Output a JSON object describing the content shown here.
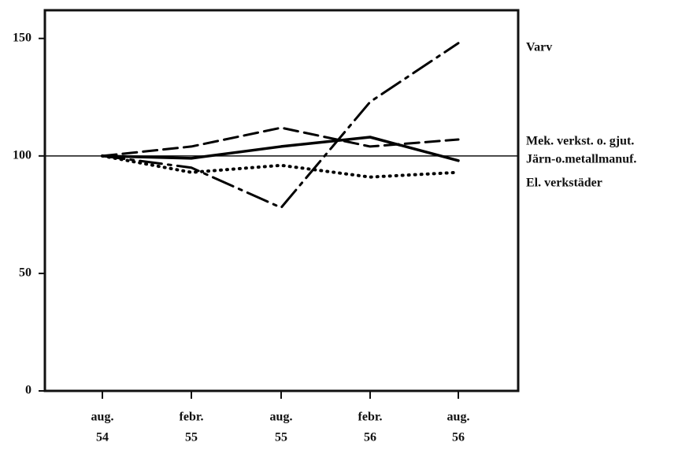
{
  "chart_data": {
    "type": "line",
    "categories": [
      [
        "aug.",
        "54"
      ],
      [
        "febr.",
        "55"
      ],
      [
        "aug.",
        "55"
      ],
      [
        "febr.",
        "56"
      ],
      [
        "aug.",
        "56"
      ]
    ],
    "series": [
      {
        "name": "Varv",
        "color": "#000000",
        "dash": "dash-dot",
        "values": [
          100,
          95,
          78,
          123,
          148
        ]
      },
      {
        "name": "Mek. verkst. o. gjut.",
        "color": "#000000",
        "dash": "dashed",
        "values": [
          100,
          104,
          112,
          104,
          107
        ]
      },
      {
        "name": "Järn-o.metallmanuf.",
        "color": "#000000",
        "dash": "solid",
        "values": [
          100,
          99,
          104,
          108,
          98
        ]
      },
      {
        "name": "El. verkstäder",
        "color": "#000000",
        "dash": "dotted",
        "values": [
          100,
          93,
          96,
          91,
          93
        ]
      }
    ],
    "ylim": [
      0,
      162
    ],
    "yticks": [
      0,
      50,
      100,
      150
    ],
    "hline": 100
  }
}
